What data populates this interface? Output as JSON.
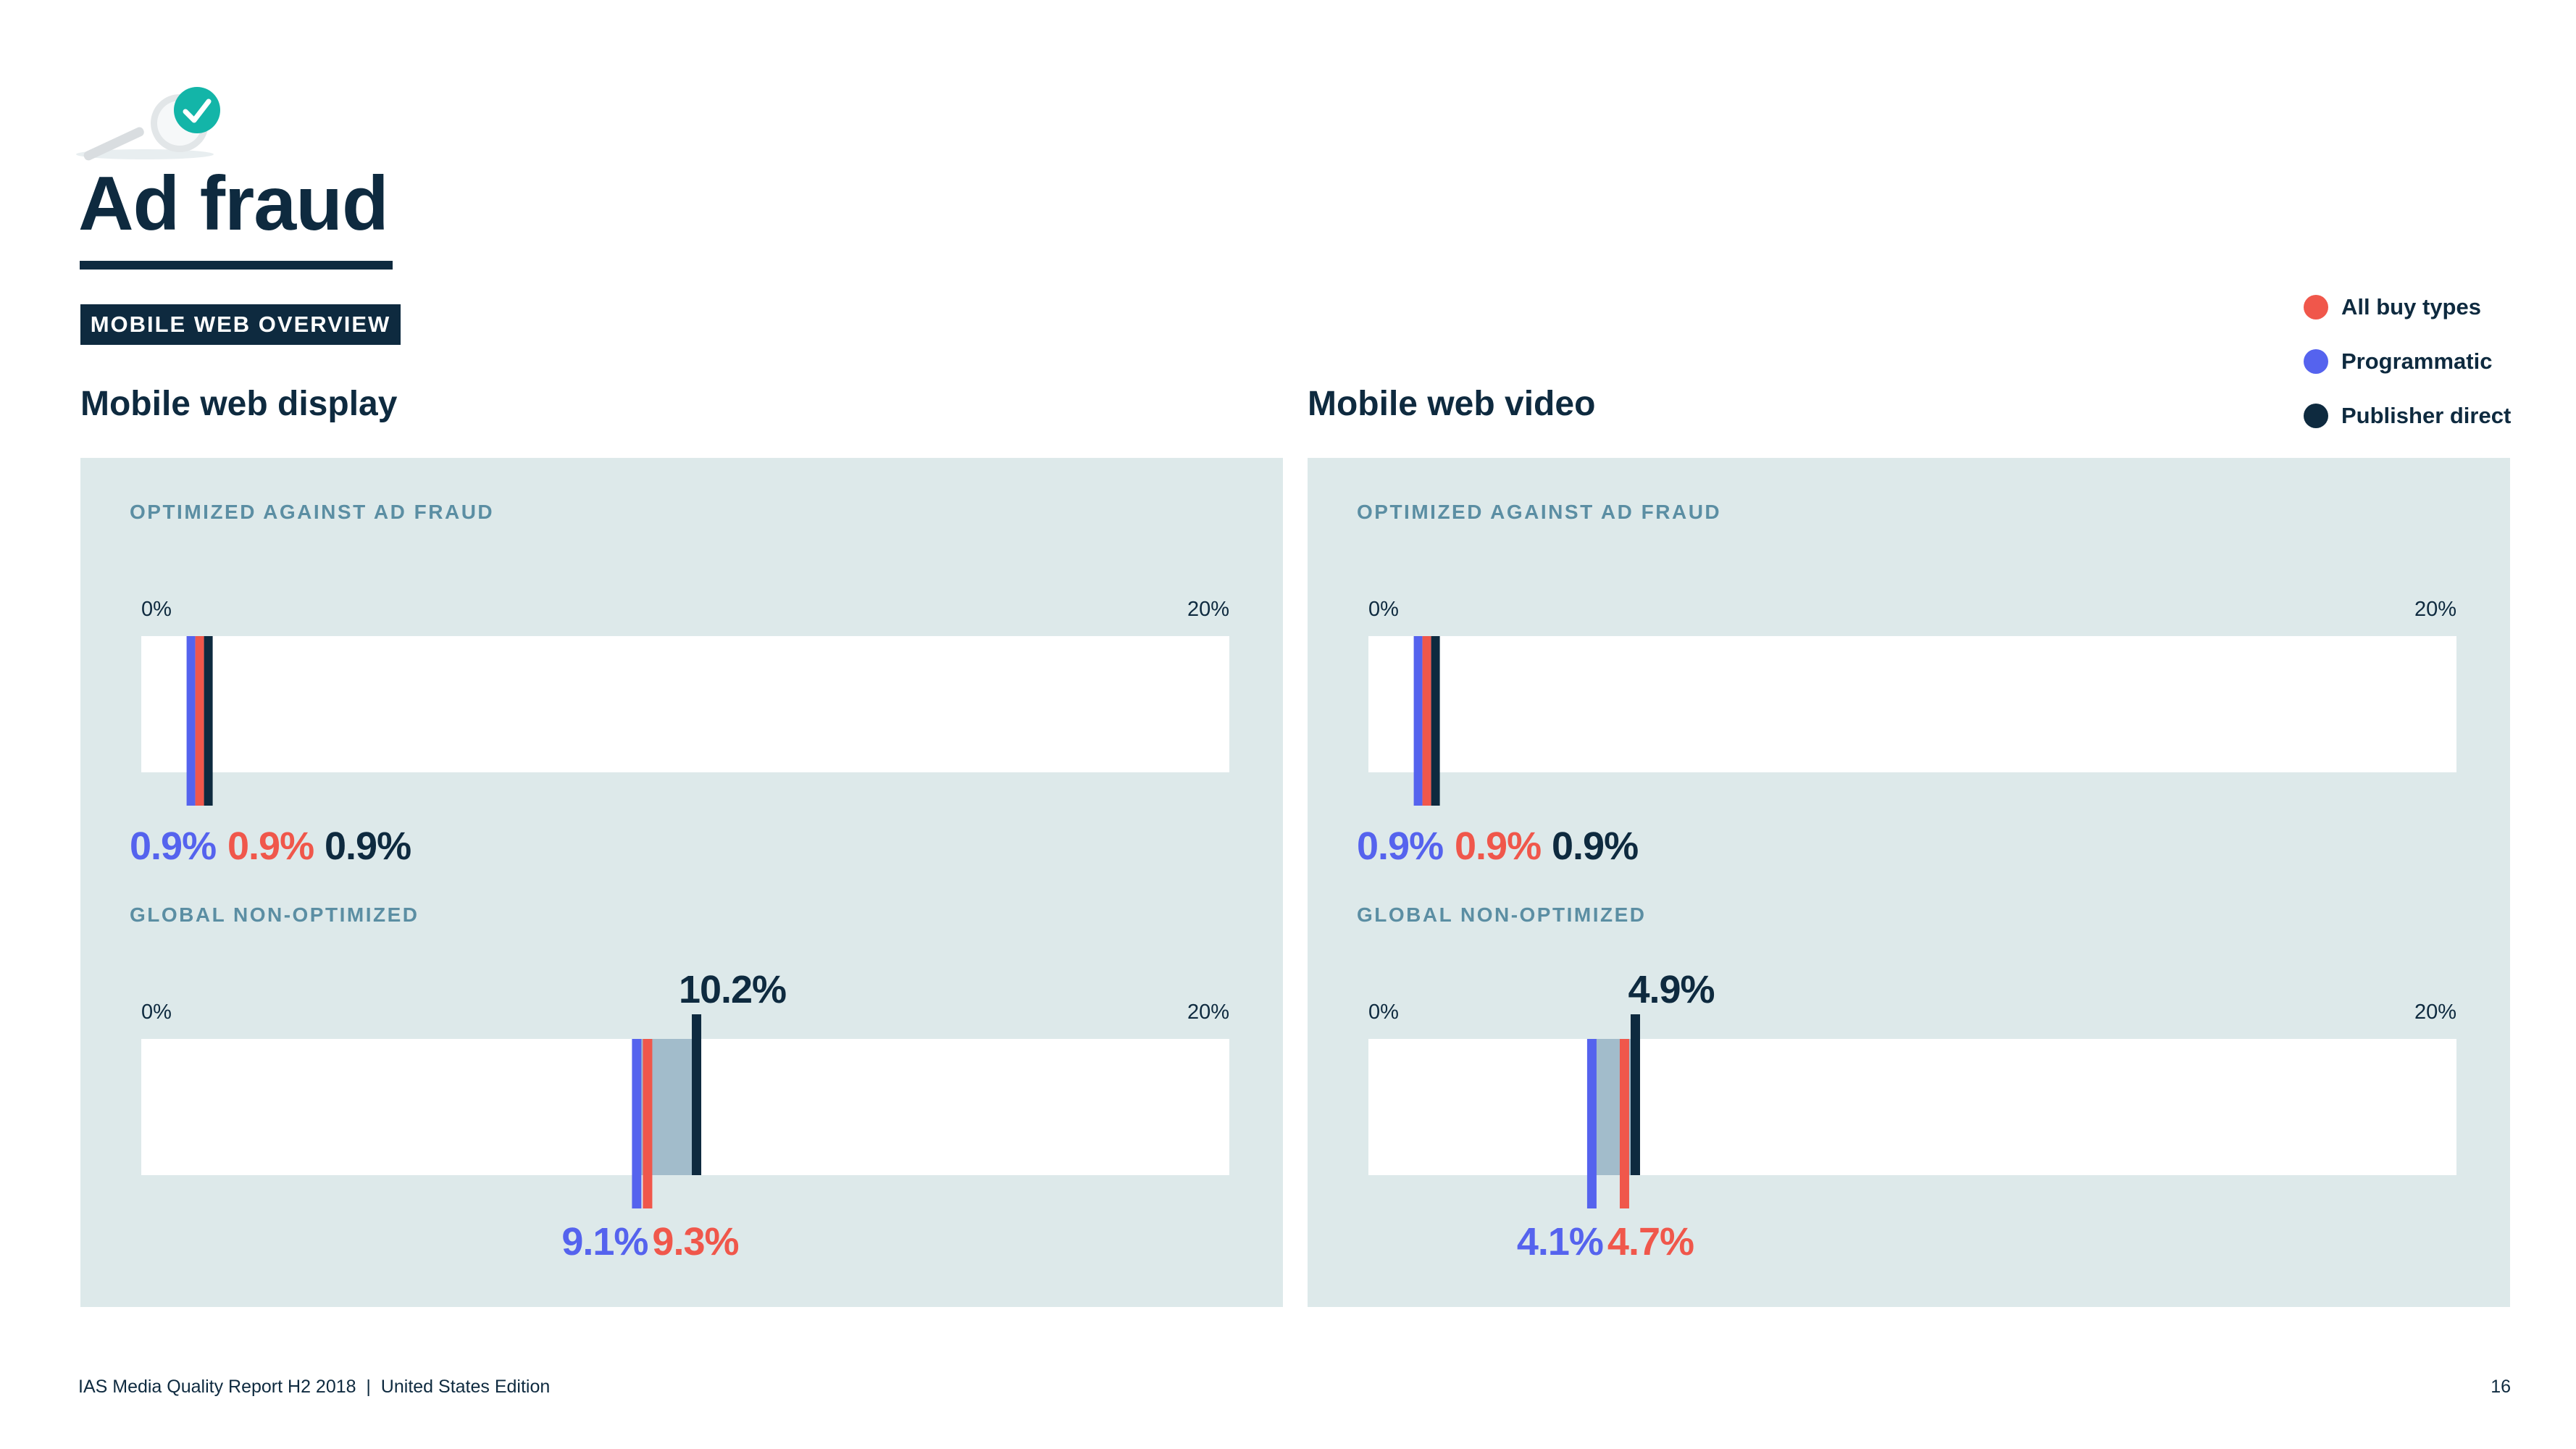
{
  "header": {
    "title": "Ad fraud",
    "badge": "MOBILE WEB OVERVIEW"
  },
  "legend": [
    {
      "label": "All buy types",
      "color": "#f0574b"
    },
    {
      "label": "Programmatic",
      "color": "#5563ee"
    },
    {
      "label": "Publisher direct",
      "color": "#0e2a3f"
    }
  ],
  "colors": {
    "all_buy_types": "#f0574b",
    "programmatic": "#5563ee",
    "publisher_direct": "#0e2a3f",
    "panel_bg": "#dde9ea",
    "section_label": "#5b8ea3",
    "range_fill": "#a2bccb"
  },
  "chart_data": [
    {
      "type": "bar",
      "title": "Mobile web display",
      "axis": {
        "min_label": "0%",
        "max_label": "20%",
        "min": 0,
        "max": 20
      },
      "sections": [
        {
          "label": "OPTIMIZED AGAINST AD FRAUD",
          "values": {
            "programmatic": 0.9,
            "all_buy_types": 0.9,
            "publisher_direct": 0.9
          },
          "labels": {
            "programmatic": "0.9%",
            "all_buy_types": "0.9%",
            "publisher_direct": "0.9%"
          }
        },
        {
          "label": "GLOBAL NON-OPTIMIZED",
          "values": {
            "programmatic": 9.1,
            "all_buy_types": 9.3,
            "publisher_direct": 10.2
          },
          "labels": {
            "programmatic": "9.1%",
            "all_buy_types": "9.3%",
            "publisher_direct": "10.2%"
          }
        }
      ]
    },
    {
      "type": "bar",
      "title": "Mobile web video",
      "axis": {
        "min_label": "0%",
        "max_label": "20%",
        "min": 0,
        "max": 20
      },
      "sections": [
        {
          "label": "OPTIMIZED AGAINST AD FRAUD",
          "values": {
            "programmatic": 0.9,
            "all_buy_types": 0.9,
            "publisher_direct": 0.9
          },
          "labels": {
            "programmatic": "0.9%",
            "all_buy_types": "0.9%",
            "publisher_direct": "0.9%"
          }
        },
        {
          "label": "GLOBAL NON-OPTIMIZED",
          "values": {
            "programmatic": 4.1,
            "all_buy_types": 4.7,
            "publisher_direct": 4.9
          },
          "labels": {
            "programmatic": "4.1%",
            "all_buy_types": "4.7%",
            "publisher_direct": "4.9%"
          }
        }
      ]
    }
  ],
  "footer": {
    "text": "IAS Media Quality Report H2 2018  |  United States Edition",
    "page": "16"
  }
}
